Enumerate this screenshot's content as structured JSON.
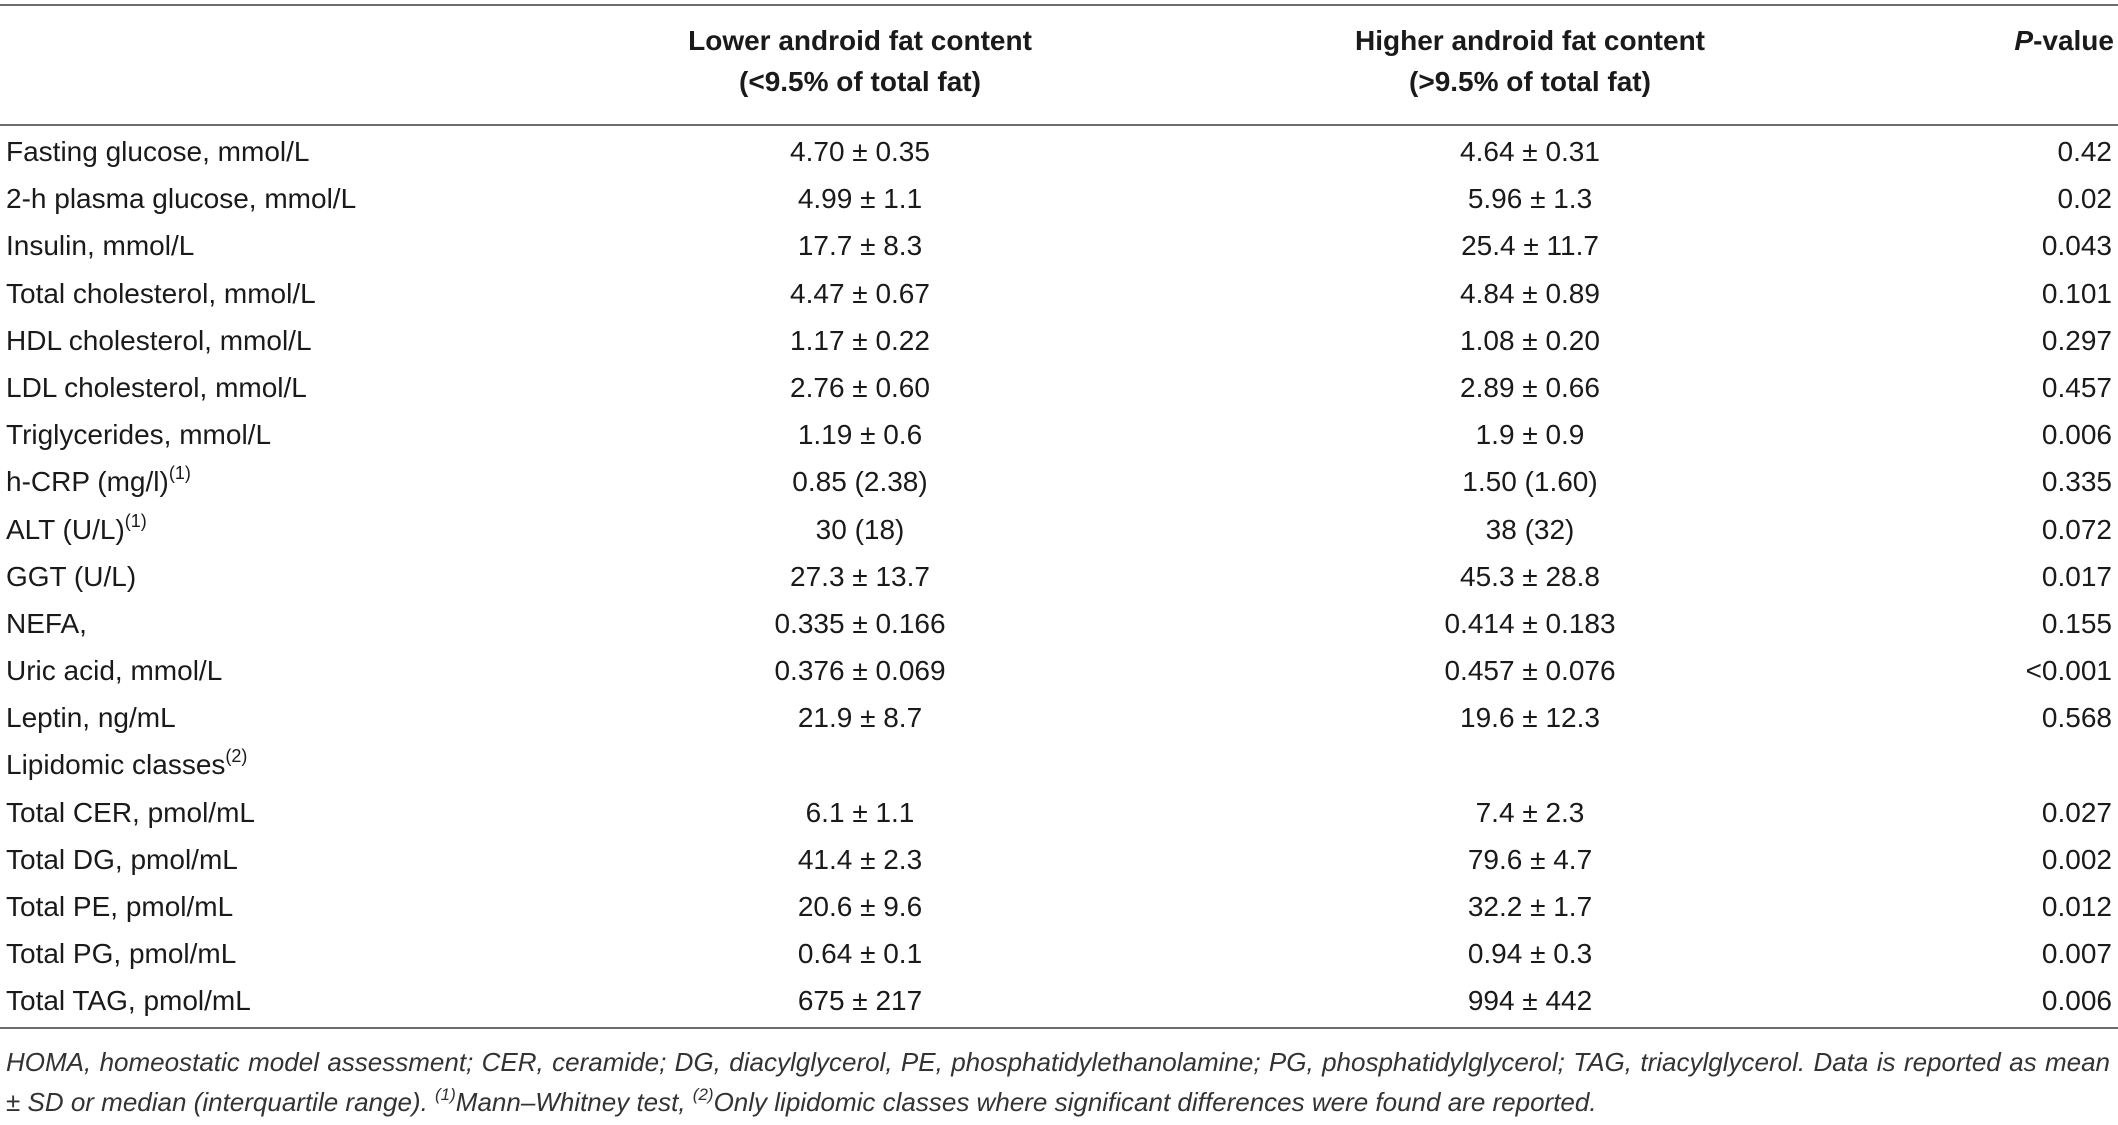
{
  "header": {
    "lower": [
      "Lower android fat content",
      "(<9.5% of total fat)"
    ],
    "higher": [
      "Higher android fat content",
      "(>9.5% of total fat)"
    ],
    "p_value_italic": "P",
    "p_value_rest": "-value"
  },
  "rows": [
    {
      "label": "Fasting glucose, mmol/L",
      "sup": "",
      "lower": "4.70 ± 0.35",
      "higher": "4.64 ± 0.31",
      "p": "0.42"
    },
    {
      "label": "2-h plasma glucose, mmol/L",
      "sup": "",
      "lower": "4.99 ± 1.1",
      "higher": "5.96 ± 1.3",
      "p": "0.02"
    },
    {
      "label": "Insulin, mmol/L",
      "sup": "",
      "lower": "17.7 ± 8.3",
      "higher": "25.4 ± 11.7",
      "p": "0.043"
    },
    {
      "label": "Total cholesterol, mmol/L",
      "sup": "",
      "lower": "4.47 ± 0.67",
      "higher": "4.84 ± 0.89",
      "p": "0.101"
    },
    {
      "label": "HDL cholesterol, mmol/L",
      "sup": "",
      "lower": "1.17 ± 0.22",
      "higher": "1.08 ± 0.20",
      "p": "0.297"
    },
    {
      "label": "LDL cholesterol, mmol/L",
      "sup": "",
      "lower": "2.76 ± 0.60",
      "higher": "2.89 ± 0.66",
      "p": "0.457"
    },
    {
      "label": "Triglycerides, mmol/L",
      "sup": "",
      "lower": "1.19 ± 0.6",
      "higher": "1.9 ± 0.9",
      "p": "0.006"
    },
    {
      "label": "h-CRP (mg/l)",
      "sup": "(1)",
      "lower": "0.85 (2.38)",
      "higher": "1.50 (1.60)",
      "p": "0.335"
    },
    {
      "label": "ALT (U/L)",
      "sup": "(1)",
      "lower": "30 (18)",
      "higher": "38 (32)",
      "p": "0.072"
    },
    {
      "label": "GGT (U/L)",
      "sup": "",
      "lower": "27.3 ± 13.7",
      "higher": "45.3 ± 28.8",
      "p": "0.017"
    },
    {
      "label": "NEFA,",
      "sup": "",
      "lower": "0.335 ± 0.166",
      "higher": "0.414 ± 0.183",
      "p": "0.155"
    },
    {
      "label": "Uric acid, mmol/L",
      "sup": "",
      "lower": "0.376 ± 0.069",
      "higher": "0.457 ± 0.076",
      "p": "<0.001"
    },
    {
      "label": "Leptin, ng/mL",
      "sup": "",
      "lower": "21.9 ± 8.7",
      "higher": "19.6 ± 12.3",
      "p": "0.568"
    },
    {
      "label": "Lipidomic classes",
      "sup": "(2)",
      "lower": "",
      "higher": "",
      "p": ""
    },
    {
      "label": "Total CER, pmol/mL",
      "sup": "",
      "lower": "6.1 ± 1.1",
      "higher": "7.4 ± 2.3",
      "p": "0.027"
    },
    {
      "label": "Total DG, pmol/mL",
      "sup": "",
      "lower": "41.4 ± 2.3",
      "higher": "79.6 ± 4.7",
      "p": "0.002"
    },
    {
      "label": "Total PE, pmol/mL",
      "sup": "",
      "lower": "20.6 ± 9.6",
      "higher": "32.2 ± 1.7",
      "p": "0.012"
    },
    {
      "label": "Total PG, pmol/mL",
      "sup": "",
      "lower": "0.64 ± 0.1",
      "higher": "0.94 ± 0.3",
      "p": "0.007"
    },
    {
      "label": "Total TAG, pmol/mL",
      "sup": "",
      "lower": "675 ± 217",
      "higher": "994 ± 442",
      "p": "0.006"
    }
  ],
  "footnote": {
    "main": "HOMA, homeostatic model assessment; CER, ceramide; DG, diacylglycerol, PE, phosphatidylethanolamine; PG, phosphatidylglycerol; TAG, triacylglycerol. Data is reported as mean ± SD or median (interquartile range). ",
    "sup1": "(1)",
    "note1": "Mann–Whitney test, ",
    "sup2": "(2)",
    "note2": "Only lipidomic classes where significant differences were found are reported."
  }
}
